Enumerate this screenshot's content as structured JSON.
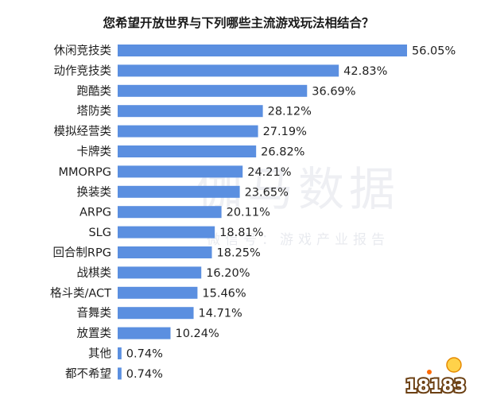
{
  "chart_data": {
    "type": "bar",
    "orientation": "horizontal",
    "title": "您希望开放世界与下列哪些主流游戏玩法相结合？",
    "categories": [
      "休闲竞技类",
      "动作竞技类",
      "跑酷类",
      "塔防类",
      "模拟经营类",
      "卡牌类",
      "MMORPG",
      "换装类",
      "ARPG",
      "SLG",
      "回合制RPG",
      "战棋类",
      "格斗类/ACT",
      "音舞类",
      "放置类",
      "其他",
      "都不希望"
    ],
    "values": [
      56.05,
      42.83,
      36.69,
      28.12,
      27.19,
      26.82,
      24.21,
      23.65,
      20.11,
      18.81,
      18.25,
      16.2,
      15.46,
      14.71,
      10.24,
      0.74,
      0.74
    ],
    "value_labels": [
      "56.05%",
      "42.83%",
      "36.69%",
      "28.12%",
      "27.19%",
      "26.82%",
      "24.21%",
      "23.65%",
      "20.11%",
      "18.81%",
      "18.25%",
      "16.20%",
      "15.46%",
      "14.71%",
      "10.24%",
      "0.74%",
      "0.74%"
    ],
    "unit": "%",
    "xlim": [
      0,
      56.05
    ],
    "grid": false,
    "legend": "none",
    "bar_color": "#5b8fe0"
  },
  "watermark": {
    "main": "伽马数据",
    "sub": "微信号：游戏产业报告"
  },
  "logo": {
    "text": "18183",
    "fill_color": "#f5a623"
  }
}
